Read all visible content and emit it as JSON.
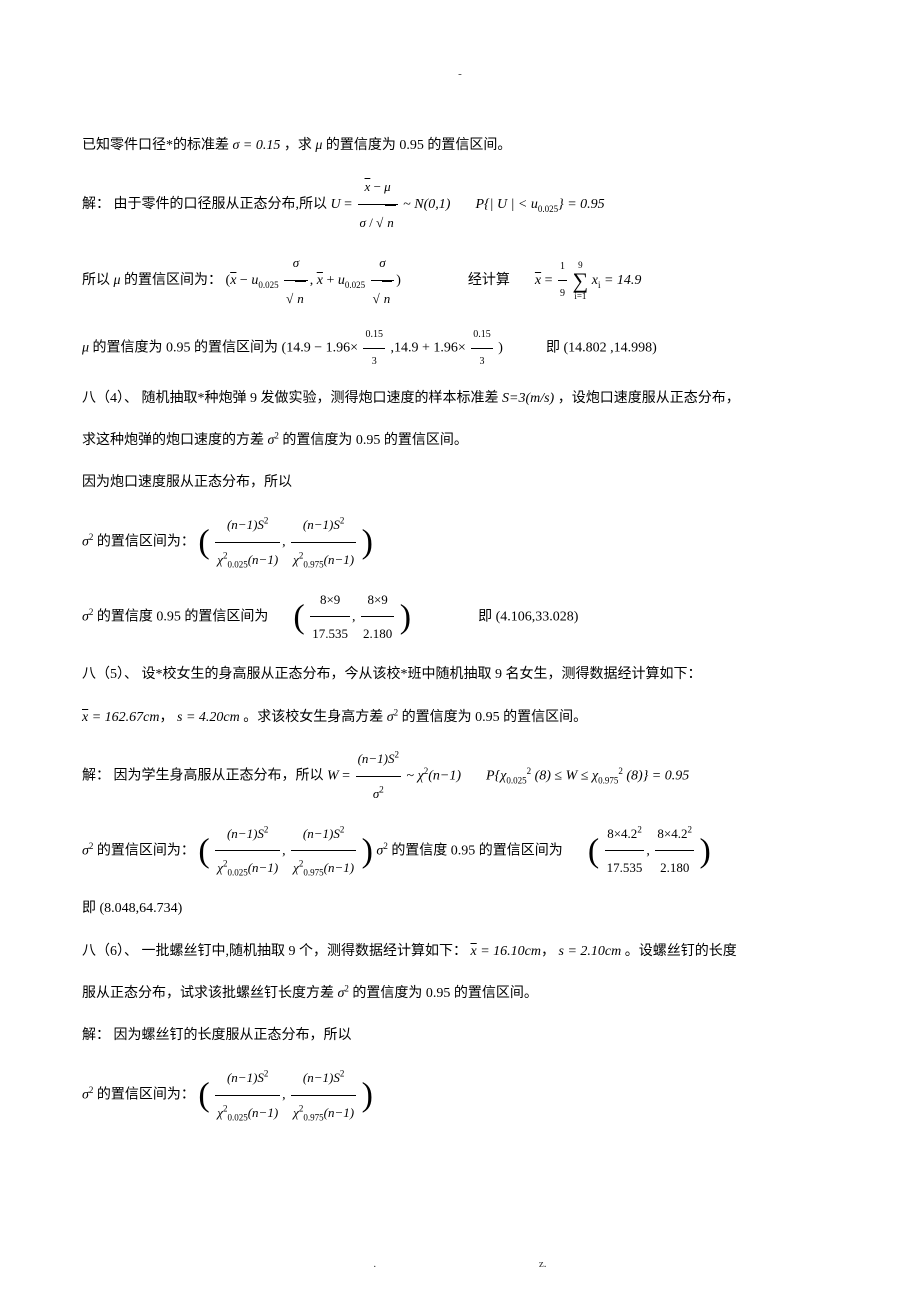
{
  "top_dash": "-",
  "p1": "已知零件口径*的标准差",
  "p1b": "，求",
  "sigma_eq": "σ = 0.15",
  "mu": "μ",
  "p1c": "的置信度为 0.95 的置信区间。",
  "sol_label": "解：",
  "p2": "由于零件的口径服从正态分布,所以",
  "U": "U",
  "xbar": "x",
  "sigma": "σ",
  "n": "n",
  "tilde": "~",
  "N01": "N(0,1)",
  "prob_Uexpr": "P{| U | < u",
  "u_sub": "0.025",
  "close_expr": "} = 0.95",
  "p3": "所以",
  "p3b": "的置信区间为：",
  "calc": "经计算",
  "xbar_calc": "= 14.9",
  "nine": "9",
  "xi": "x",
  "i": "i",
  "ieq1": "i=1",
  "one_ninth": "1",
  "nine_den": "9",
  "range1": "(14.9 − 1.96×",
  "f015": "0.15",
  "f3": "3",
  "range1b": ",14.9 + 1.96×",
  "range1c": ")",
  "ji": "即",
  "res1": "(14.802   ,14.998)",
  "p4_head": "八（4）、",
  "p4": "随机抽取*种炮弹 9 发做实验，测得炮口速度的样本标准差",
  "S3": "S=3(m/s)",
  "p4b": "，设炮口速度服从正态分布，",
  "p4c": "求这种炮弹的炮口速度的方差",
  "sigma2": "σ",
  "p4d": "的置信度为 0.95 的置信区间。",
  "p4e": "因为炮口速度服从正态分布，所以",
  "p5": "的置信区间为：",
  "nm1S2": "(n−1)S",
  "chi0025": "χ",
  "chi_sub_0025": "0.025",
  "chi_sub_0975": "0.975",
  "nm1": "(n−1)",
  "p5b": "的置信度 0.95 的置信区间为",
  "ex8x9": "8×9",
  "ex17535": "17.535",
  "ex2180": "2.180",
  "res2": "(4.106,33.028)",
  "p6_head": "八（5）、",
  "p6": "设*校女生的身高服从正态分布，今从该校*班中随机抽取 9 名女生，测得数据经计算如下：",
  "xbar_val2": "= 162.67cm",
  "s_val2": "s = 4.20cm",
  "p6b": "。求该校女生身高方差",
  "p6c": "的置信度为 0.95 的置信区间。",
  "p7": "因为学生身高服从正态分布，所以",
  "W": "W",
  "chi2_nm1": "χ",
  "p7b": "P{χ",
  "le": "(8) ≤ W ≤ χ",
  "end8": "(8)} = 0.95",
  "ex8x42": "8×4.2",
  "res3": "(8.048,64.734)",
  "p8_head": "八（6）、",
  "p8": "一批螺丝钉中,随机抽取 9 个，测得数据经计算如下：",
  "xbar_val3": "= 16.10cm",
  "s_val3": "s = 2.10cm",
  "p8b": "。设螺丝钉的长度",
  "p8c": "服从正态分布，试求该批螺丝钉长度方差",
  "p9": "因为螺丝钉的长度服从正态分布，所以",
  "footer_dot": ".",
  "footer_z": "z."
}
